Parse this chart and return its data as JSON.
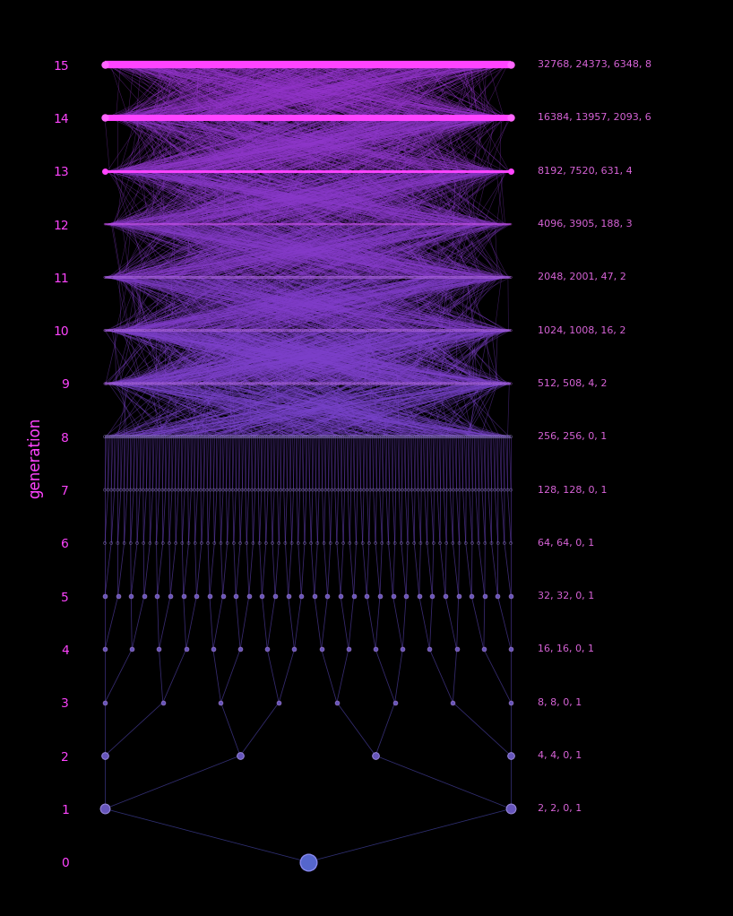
{
  "background_color": "#000000",
  "fig_width": 8.18,
  "fig_height": 10.22,
  "dpi": 100,
  "generations": [
    0,
    1,
    2,
    3,
    4,
    5,
    6,
    7,
    8,
    9,
    10,
    11,
    12,
    13,
    14,
    15
  ],
  "gen_annotations": {
    "1": "2, 2, 0, 1",
    "2": "4, 4, 0, 1",
    "3": "8, 8, 0, 1",
    "4": "16, 16, 0, 1",
    "5": "32, 32, 0, 1",
    "6": "64, 64, 0, 1",
    "7": "128, 128, 0, 1",
    "8": "256, 256, 0, 1",
    "9": "512, 508, 4, 2",
    "10": "1024, 1008, 16, 2",
    "11": "2048, 2001, 47, 2",
    "12": "4096, 3905, 188, 3",
    "13": "8192, 7520, 631, 4",
    "14": "16384, 13957, 2093, 6",
    "15": "32768, 24373, 6348, 8"
  },
  "ylabel": "generation",
  "ylabel_color": "#ff44ff",
  "tick_label_color": "#ff44ff",
  "annotation_color": "#dd66dd",
  "seed": 42,
  "max_edges_per_gen": 800,
  "unique_ancestors": {
    "0": 1,
    "1": 2,
    "2": 4,
    "3": 8,
    "4": 16,
    "5": 32,
    "6": 64,
    "7": 128,
    "8": 256,
    "9": 508,
    "10": 1008,
    "11": 2001,
    "12": 3905,
    "13": 7520,
    "14": 13957,
    "15": 24373
  }
}
